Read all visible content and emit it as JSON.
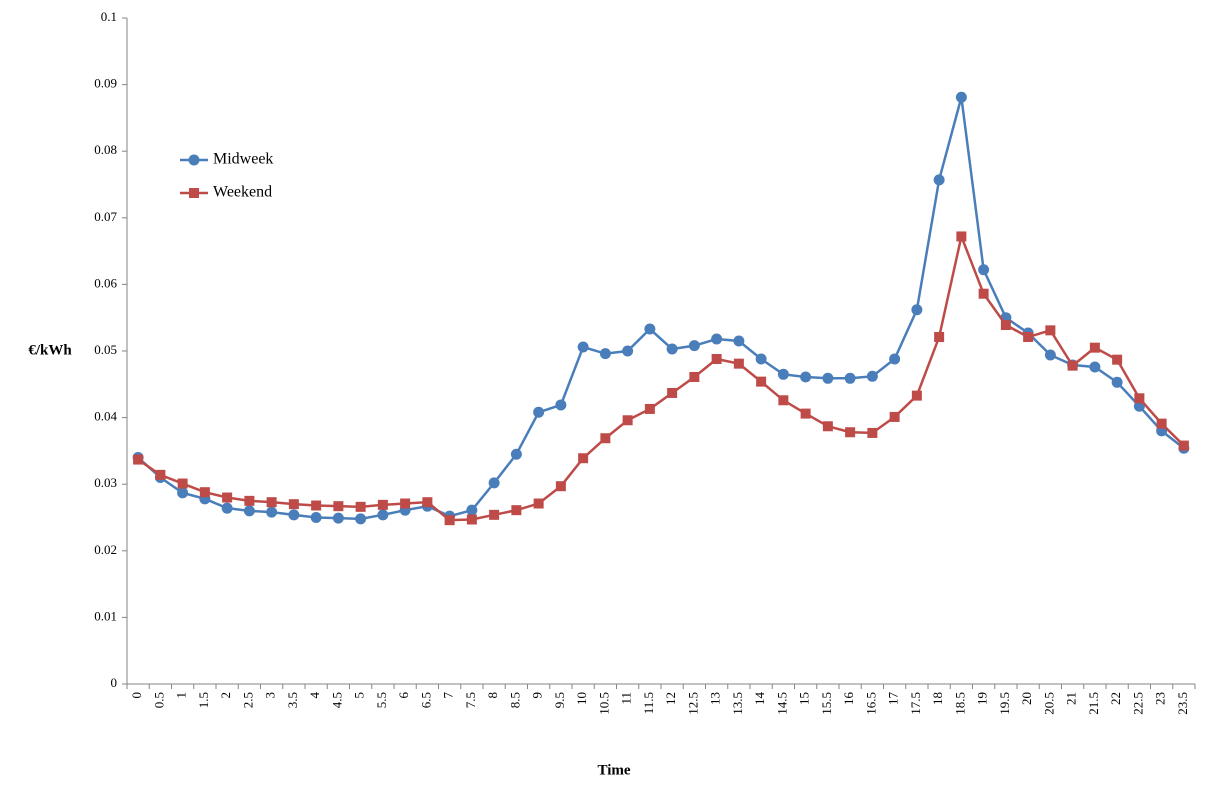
{
  "chart_data": {
    "type": "line",
    "xlabel": "Time",
    "ylabel": "€/kWh",
    "categories": [
      "0",
      "0.5",
      "1",
      "1.5",
      "2",
      "2.5",
      "3",
      "3.5",
      "4",
      "4.5",
      "5",
      "5.5",
      "6",
      "6.5",
      "7",
      "7.5",
      "8",
      "8.5",
      "9",
      "9.5",
      "10",
      "10.5",
      "11",
      "11.5",
      "12",
      "12.5",
      "13",
      "13.5",
      "14",
      "14.5",
      "15",
      "15.5",
      "16",
      "16.5",
      "17",
      "17.5",
      "18",
      "18.5",
      "19",
      "19.5",
      "20",
      "20.5",
      "21",
      "21.5",
      "22",
      "22.5",
      "23",
      "23.5"
    ],
    "series": [
      {
        "name": "Midweek",
        "color": "#4a7ebb",
        "marker": "circle",
        "values": [
          0.034,
          0.031,
          0.0287,
          0.0278,
          0.0264,
          0.026,
          0.0258,
          0.0254,
          0.025,
          0.0249,
          0.0248,
          0.0254,
          0.0261,
          0.0267,
          0.0252,
          0.0261,
          0.0302,
          0.0345,
          0.0408,
          0.0419,
          0.0506,
          0.0496,
          0.05,
          0.0533,
          0.0503,
          0.0508,
          0.0518,
          0.0515,
          0.0488,
          0.0465,
          0.0461,
          0.0459,
          0.0459,
          0.0462,
          0.0488,
          0.0562,
          0.0757,
          0.0881,
          0.0622,
          0.055,
          0.0527,
          0.0494,
          0.0479,
          0.0476,
          0.0453,
          0.0417,
          0.038,
          0.0354
        ]
      },
      {
        "name": "Weekend",
        "color": "#be4b48",
        "marker": "square",
        "values": [
          0.0337,
          0.0314,
          0.0301,
          0.0288,
          0.028,
          0.0275,
          0.0273,
          0.027,
          0.0268,
          0.0267,
          0.0266,
          0.0269,
          0.0271,
          0.0273,
          0.0246,
          0.0247,
          0.0254,
          0.0261,
          0.0271,
          0.0297,
          0.0339,
          0.0369,
          0.0396,
          0.0413,
          0.0437,
          0.0461,
          0.0488,
          0.0481,
          0.0454,
          0.0426,
          0.0406,
          0.0387,
          0.0378,
          0.0377,
          0.0401,
          0.0433,
          0.0521,
          0.0672,
          0.0586,
          0.0539,
          0.0521,
          0.0531,
          0.0478,
          0.0505,
          0.0487,
          0.0429,
          0.0391,
          0.0358
        ]
      }
    ],
    "ylim": [
      0,
      0.1
    ],
    "yticks": [
      0,
      0.01,
      0.02,
      0.03,
      0.04,
      0.05,
      0.06,
      0.07,
      0.08,
      0.09,
      0.1
    ],
    "grid": false,
    "legend": "upper left"
  }
}
